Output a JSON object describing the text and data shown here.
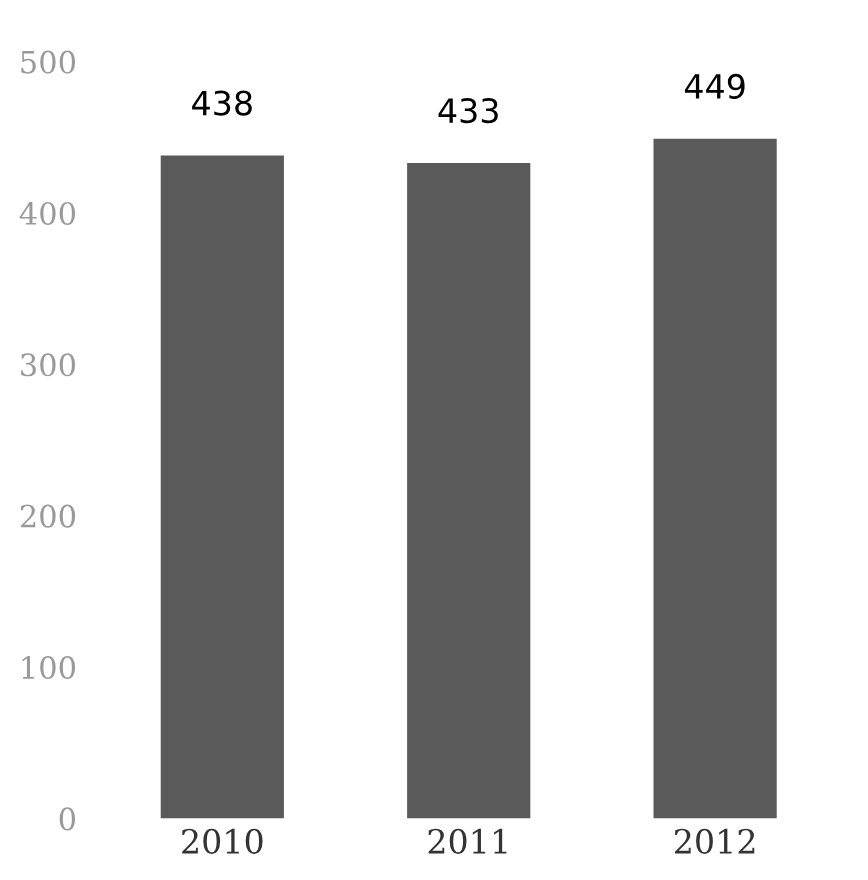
{
  "chart_data": {
    "type": "bar",
    "categories": [
      "2010",
      "2011",
      "2012"
    ],
    "values": [
      438,
      433,
      449
    ],
    "color": "#5a5a5a",
    "ylim": [
      0,
      500
    ],
    "yticks": [
      0,
      100,
      200,
      300,
      400,
      500
    ],
    "data_labels": true,
    "grid": false,
    "legend": false
  }
}
